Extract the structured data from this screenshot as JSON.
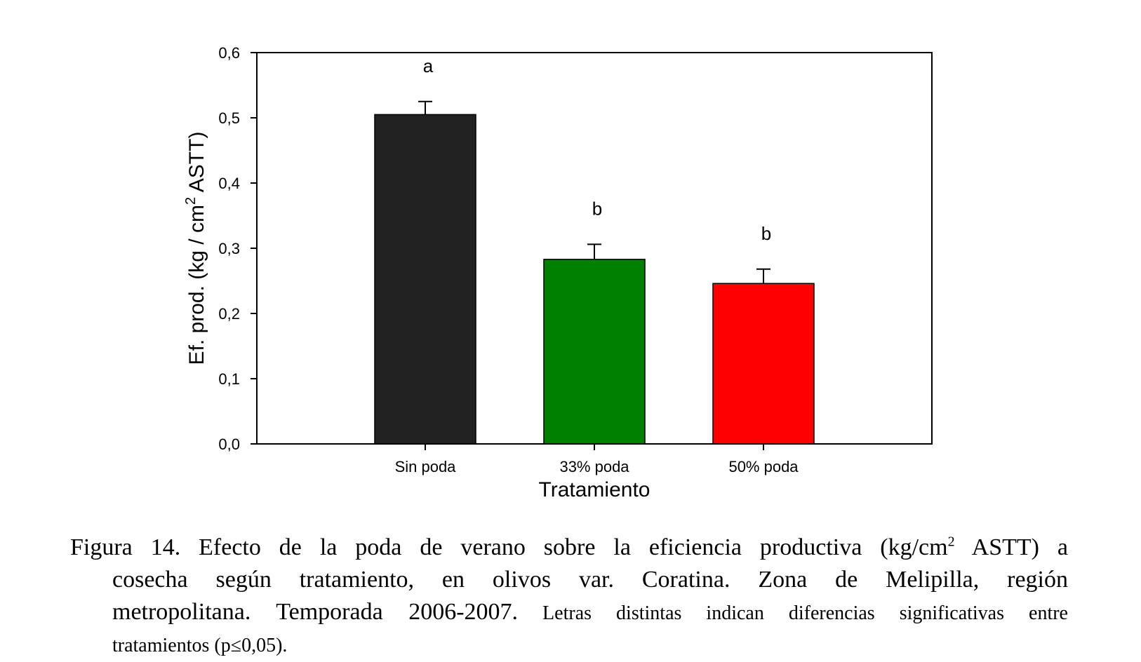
{
  "chart_data": {
    "type": "bar",
    "categories": [
      "Sin poda",
      "33% poda",
      "50% poda"
    ],
    "values": [
      0.505,
      0.283,
      0.246
    ],
    "errors": [
      0.02,
      0.023,
      0.022
    ],
    "significance_letters": [
      "a",
      "b",
      "b"
    ],
    "colors": [
      "#222222",
      "#008000",
      "#ff0000"
    ],
    "xlabel": "Tratamiento",
    "ylabel_pre": "Ef. prod. (kg / cm",
    "ylabel_sup": "2",
    "ylabel_post": " ASTT)",
    "ylim": [
      0,
      0.6
    ],
    "yticks": [
      0,
      0.1,
      0.2,
      0.3,
      0.4,
      0.5,
      0.6
    ],
    "ytick_labels": [
      "0,0",
      "0,1",
      "0,2",
      "0,3",
      "0,4",
      "0,5",
      "0,6"
    ],
    "grid": false
  },
  "caption": {
    "line1_pre": "Figura 14. Efecto de la poda de verano sobre la eficiencia productiva (kg/cm",
    "line1_sup": "2",
    "line1_post": " ASTT) a",
    "line2": "cosecha según tratamiento, en olivos var. Coratina. Zona de Melipilla, región",
    "line3_main": "metropolitana. Temporada 2006-2007.",
    "line3_small": " Letras distintas indican diferencias significativas entre",
    "line4": "tratamientos (p≤0,05)."
  }
}
